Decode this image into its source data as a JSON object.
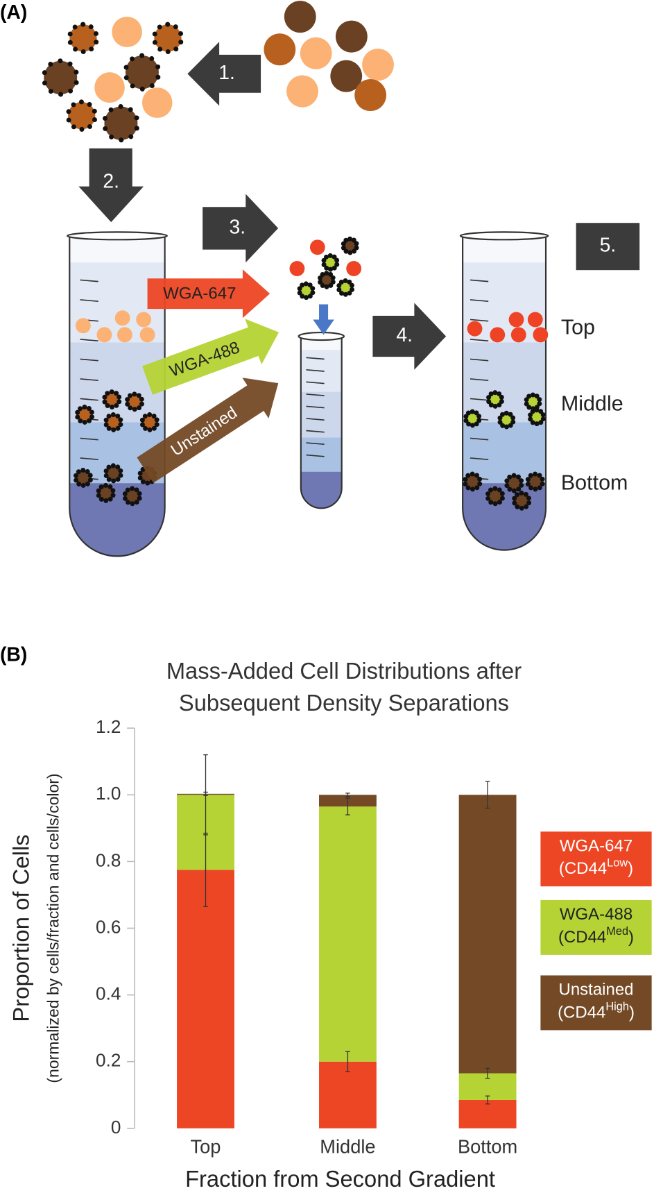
{
  "diagram": {
    "panel_label": "(A)",
    "steps": [
      "1.",
      "2.",
      "3.",
      "4.",
      "5."
    ],
    "arrow_labels": [
      "WGA-647",
      "WGA-488",
      "Unstained"
    ],
    "layer_labels": [
      "Top",
      "Middle",
      "Bottom"
    ]
  },
  "chart_data": {
    "type": "stacked_bar",
    "panel_label": "(B)",
    "title": [
      "Mass-Added Cell Distributions after",
      "Subsequent Density Separations"
    ],
    "y_label": "Proportion of Cells",
    "y_sublabel": "(normalized by cells/fraction and cells/color)",
    "x_label": "Fraction from Second Gradient",
    "categories": [
      "Top",
      "Middle",
      "Bottom"
    ],
    "ylim": [
      0,
      1.2
    ],
    "yticks": [
      0,
      0.2,
      0.4,
      0.6,
      0.8,
      {
        "value": 1,
        "label": "1.0"
      },
      1.2
    ],
    "grid": false,
    "legend": "right",
    "series": [
      {
        "name": "WGA-647",
        "legend_sub": [
          "(CD44",
          "Low",
          ")"
        ],
        "color": "#ec4624",
        "text_color": "#ffffff",
        "values": [
          0.775,
          0.2,
          0.085
        ],
        "errors": [
          0.11,
          0.03,
          0.012
        ]
      },
      {
        "name": "WGA-488",
        "legend_sub": [
          "(CD44",
          "Med",
          ")"
        ],
        "color": "#b5d334",
        "text_color": "#222222",
        "values": [
          0.225,
          0.765,
          0.08
        ],
        "errors": [
          0.12,
          0.025,
          0.015
        ]
      },
      {
        "name": "Unstained",
        "legend_sub": [
          "(CD44",
          "High",
          ")"
        ],
        "color": "#744a26",
        "text_color": "#ffffff",
        "values": [
          0.003,
          0.035,
          0.835
        ],
        "errors": [
          0.005,
          0.005,
          0.04
        ]
      }
    ]
  }
}
